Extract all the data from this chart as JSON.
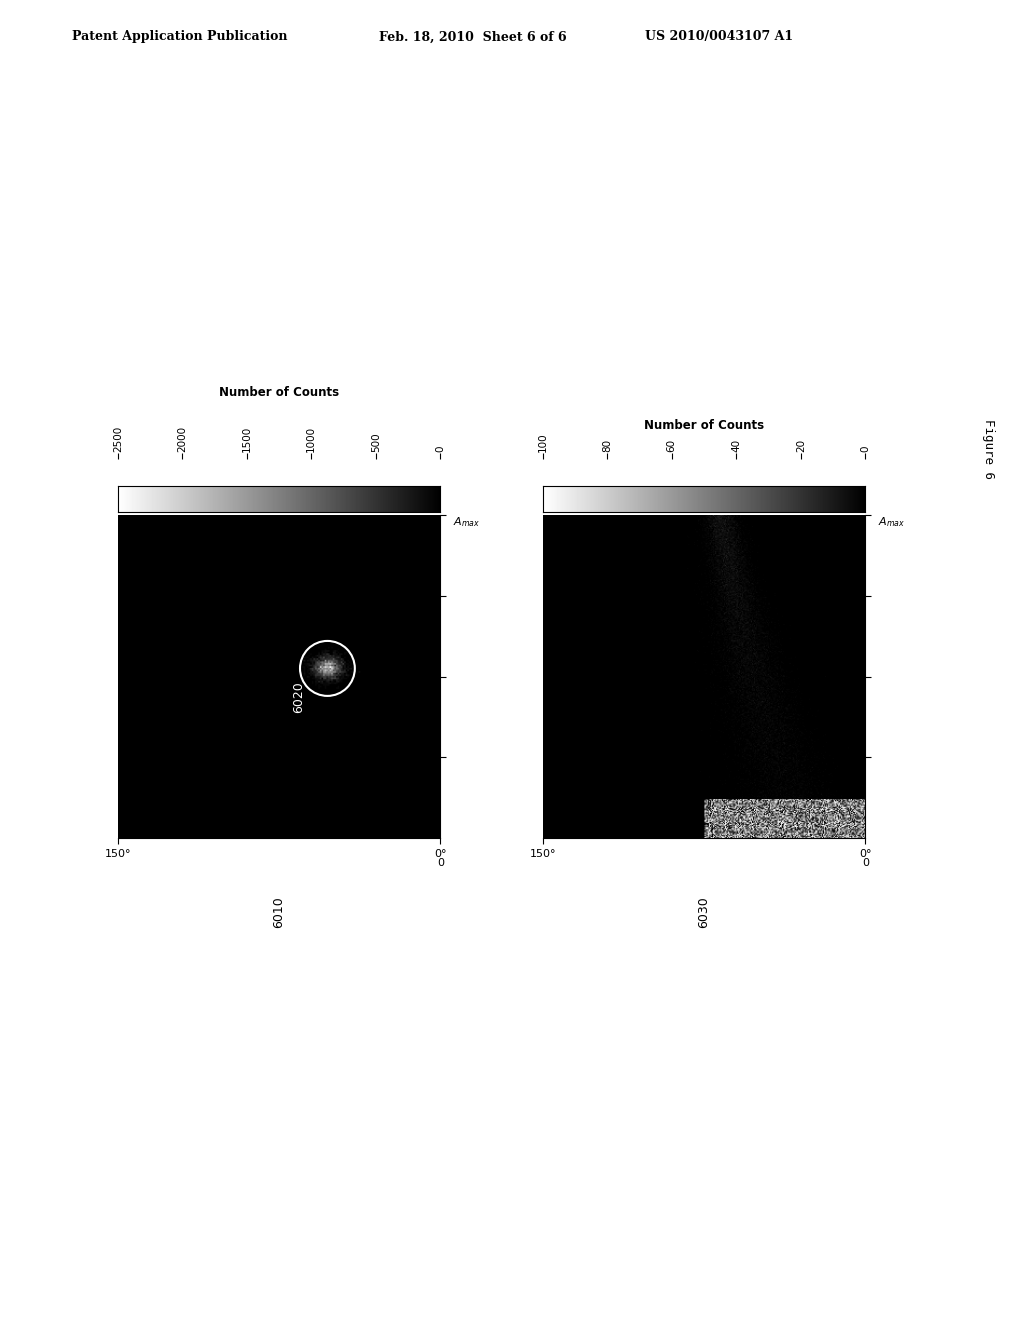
{
  "header_left": "Patent Application Publication",
  "header_mid": "Feb. 18, 2010  Sheet 6 of 6",
  "header_right": "US 2010/0043107 A1",
  "figure_label": "Figure 6",
  "left_colorbar_title": "Number of Counts",
  "left_colorbar_ticks": [
    2500,
    2000,
    1500,
    1000,
    500,
    0
  ],
  "right_colorbar_title": "Number of Counts",
  "right_colorbar_ticks": [
    100,
    80,
    60,
    40,
    20,
    0
  ],
  "left_xlabel": "6010",
  "right_xlabel": "6030",
  "left_annotation": "6020",
  "bg_color": "#ffffff",
  "plot_bg": "#000000",
  "fig_width": 10.24,
  "fig_height": 13.2
}
